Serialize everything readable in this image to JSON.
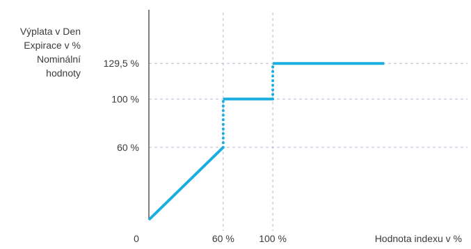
{
  "chart_data": {
    "type": "line",
    "ylabel_lines": [
      "Výplata v Den",
      "Expirace v %",
      "Nominální",
      "hodnoty"
    ],
    "xlabel": "Hodnota indexu v %",
    "origin_label": "0",
    "x_ticks": [
      {
        "value": 60,
        "label": "60 %"
      },
      {
        "value": 100,
        "label": "100 %"
      }
    ],
    "y_ticks": [
      {
        "value": 60,
        "label": "60 %"
      },
      {
        "value": 100,
        "label": "100 %"
      },
      {
        "value": 129.5,
        "label": "129,5 %"
      }
    ],
    "xlim": [
      0,
      260
    ],
    "ylim": [
      0,
      174
    ],
    "grid": "dashed at tick values",
    "series": [
      {
        "segments": [
          {
            "style": "solid",
            "points": [
              [
                0,
                0
              ],
              [
                60,
                60
              ]
            ]
          },
          {
            "style": "dotted",
            "points": [
              [
                60,
                60
              ],
              [
                60,
                100
              ]
            ]
          },
          {
            "style": "solid",
            "points": [
              [
                60,
                100
              ],
              [
                100,
                100
              ]
            ]
          },
          {
            "style": "dotted",
            "points": [
              [
                100,
                100
              ],
              [
                100,
                129.5
              ]
            ]
          },
          {
            "style": "solid",
            "points": [
              [
                100,
                129.5
              ],
              [
                190,
                129.5
              ]
            ]
          }
        ]
      }
    ]
  },
  "colors": {
    "series": "#1aaee0",
    "axis": "#4a4a4a",
    "grid": "#b8b8d2",
    "text": "#3b3b3b"
  }
}
